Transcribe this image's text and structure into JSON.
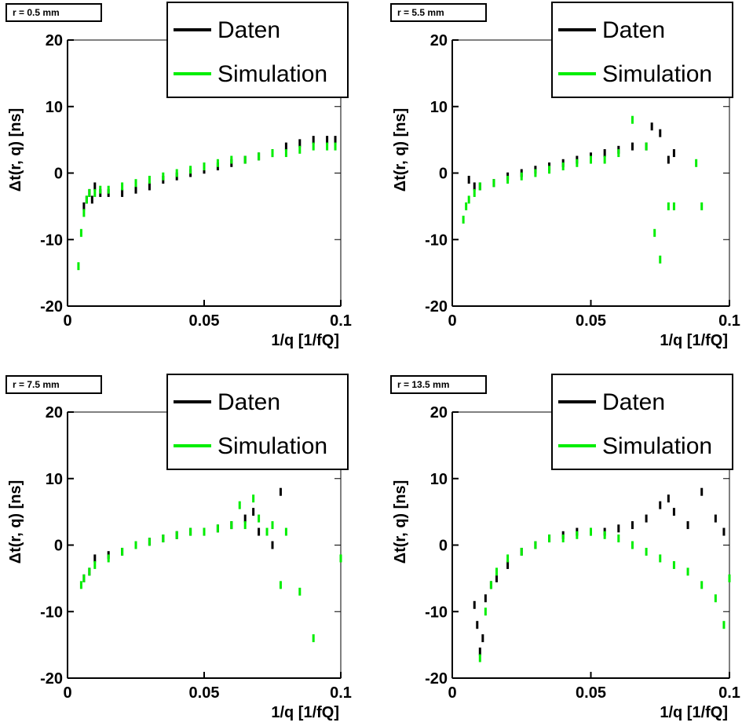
{
  "chart_data": [
    {
      "type": "scatter",
      "panel_label": "r = 0.5 mm",
      "xlabel": "1/q [1/fQ]",
      "ylabel": "Δt(r, q) [ns]",
      "xlim": [
        0,
        0.1
      ],
      "ylim": [
        -20,
        20
      ],
      "xticks": [
        "0",
        "0.05",
        "0.1"
      ],
      "yticks": [
        "-20",
        "-10",
        "0",
        "10",
        "20"
      ],
      "legend": [
        "Daten",
        "Simulation"
      ],
      "legend_position": "top-right",
      "series": [
        {
          "name": "Daten",
          "color": "#000000",
          "x": [
            0.006,
            0.007,
            0.008,
            0.009,
            0.01,
            0.012,
            0.015,
            0.02,
            0.025,
            0.03,
            0.035,
            0.04,
            0.045,
            0.05,
            0.055,
            0.06,
            0.065,
            0.07,
            0.075,
            0.08,
            0.085,
            0.09,
            0.095,
            0.098
          ],
          "y": [
            -5,
            -4,
            -3,
            -4,
            -2,
            -3,
            -3,
            -3,
            -2.5,
            -2,
            -1,
            -0.5,
            0,
            0.5,
            1,
            1.5,
            2,
            2.5,
            3,
            4,
            4.5,
            5,
            5,
            5
          ]
        },
        {
          "name": "Simulation",
          "color": "#00ee00",
          "x": [
            0.004,
            0.005,
            0.006,
            0.007,
            0.008,
            0.01,
            0.012,
            0.015,
            0.02,
            0.025,
            0.03,
            0.035,
            0.04,
            0.045,
            0.05,
            0.055,
            0.06,
            0.065,
            0.07,
            0.075,
            0.08,
            0.085,
            0.09,
            0.095,
            0.098
          ],
          "y": [
            -14,
            -9,
            -6,
            -4,
            -3,
            -3,
            -2.5,
            -2.5,
            -2,
            -1.5,
            -1,
            -0.5,
            0,
            0.5,
            1,
            1.5,
            2,
            2,
            2.5,
            3,
            3,
            3.5,
            4,
            4,
            4
          ]
        }
      ]
    },
    {
      "type": "scatter",
      "panel_label": "r = 5.5 mm",
      "xlabel": "1/q [1/fQ]",
      "ylabel": "Δt(r, q) [ns]",
      "xlim": [
        0,
        0.1
      ],
      "ylim": [
        -20,
        20
      ],
      "xticks": [
        "0",
        "0.05",
        "0.1"
      ],
      "yticks": [
        "-20",
        "-10",
        "0",
        "10",
        "20"
      ],
      "legend": [
        "Daten",
        "Simulation"
      ],
      "legend_position": "top-right",
      "series": [
        {
          "name": "Daten",
          "color": "#000000",
          "x": [
            0.006,
            0.008,
            0.01,
            0.015,
            0.02,
            0.025,
            0.03,
            0.035,
            0.04,
            0.045,
            0.05,
            0.055,
            0.06,
            0.065,
            0.07,
            0.072,
            0.075,
            0.078,
            0.08
          ],
          "y": [
            -1,
            -2,
            -2,
            -1.5,
            -0.5,
            0,
            0.5,
            1,
            1.5,
            2,
            2.5,
            3,
            3.5,
            4,
            4,
            7,
            6,
            2,
            3
          ]
        },
        {
          "name": "Simulation",
          "color": "#00ee00",
          "x": [
            0.004,
            0.005,
            0.006,
            0.008,
            0.01,
            0.015,
            0.02,
            0.025,
            0.03,
            0.035,
            0.04,
            0.045,
            0.05,
            0.055,
            0.06,
            0.065,
            0.07,
            0.073,
            0.075,
            0.078,
            0.08,
            0.088,
            0.09
          ],
          "y": [
            -7,
            -5,
            -4,
            -3,
            -2,
            -1.5,
            -1,
            -0.5,
            0,
            0.5,
            1,
            1.5,
            2,
            2,
            3,
            8,
            4,
            -9,
            -13,
            -5,
            -5,
            1.5,
            -5
          ]
        }
      ]
    },
    {
      "type": "scatter",
      "panel_label": "r = 7.5 mm",
      "xlabel": "1/q [1/fQ]",
      "ylabel": "Δt(r, q) [ns]",
      "xlim": [
        0,
        0.1
      ],
      "ylim": [
        -20,
        20
      ],
      "xticks": [
        "0",
        "0.05",
        "0.1"
      ],
      "yticks": [
        "-20",
        "-10",
        "0",
        "10",
        "20"
      ],
      "legend": [
        "Daten",
        "Simulation"
      ],
      "legend_position": "top-right",
      "series": [
        {
          "name": "Daten",
          "color": "#000000",
          "x": [
            0.006,
            0.008,
            0.01,
            0.015,
            0.02,
            0.025,
            0.03,
            0.035,
            0.04,
            0.045,
            0.05,
            0.055,
            0.06,
            0.065,
            0.068,
            0.07,
            0.075,
            0.078
          ],
          "y": [
            -5,
            -4,
            -2,
            -1.5,
            -1,
            0,
            0.5,
            1,
            1.5,
            2,
            2,
            2.5,
            3,
            4,
            5,
            2,
            0,
            8
          ]
        },
        {
          "name": "Simulation",
          "color": "#00ee00",
          "x": [
            0.005,
            0.006,
            0.008,
            0.01,
            0.015,
            0.02,
            0.025,
            0.03,
            0.035,
            0.04,
            0.045,
            0.05,
            0.055,
            0.06,
            0.063,
            0.065,
            0.068,
            0.07,
            0.073,
            0.075,
            0.078,
            0.08,
            0.085,
            0.09,
            0.1
          ],
          "y": [
            -6,
            -5,
            -4,
            -3,
            -2,
            -1,
            0,
            0.5,
            1,
            1.5,
            2,
            2,
            2.5,
            3,
            6,
            3,
            7,
            4,
            2,
            3,
            -6,
            2,
            -7,
            -14,
            -2
          ]
        }
      ]
    },
    {
      "type": "scatter",
      "panel_label": "r = 13.5 mm",
      "xlabel": "1/q [1/fQ]",
      "ylabel": "Δt(r, q) [ns]",
      "xlim": [
        0,
        0.1
      ],
      "ylim": [
        -20,
        20
      ],
      "xticks": [
        "0",
        "0.05",
        "0.1"
      ],
      "yticks": [
        "-20",
        "-10",
        "0",
        "10",
        "20"
      ],
      "legend": [
        "Daten",
        "Simulation"
      ],
      "legend_position": "top-right",
      "series": [
        {
          "name": "Daten",
          "color": "#000000",
          "x": [
            0.008,
            0.009,
            0.01,
            0.011,
            0.012,
            0.014,
            0.016,
            0.02,
            0.025,
            0.03,
            0.035,
            0.04,
            0.045,
            0.05,
            0.055,
            0.06,
            0.065,
            0.07,
            0.075,
            0.078,
            0.08,
            0.085,
            0.09,
            0.095,
            0.098
          ],
          "y": [
            -9,
            -12,
            -16,
            -14,
            -8,
            -6,
            -5,
            -3,
            -1,
            0,
            1,
            1.5,
            2,
            2,
            2,
            2.5,
            3,
            4,
            6,
            7,
            5,
            3,
            8,
            4,
            2
          ]
        },
        {
          "name": "Simulation",
          "color": "#00ee00",
          "x": [
            0.01,
            0.012,
            0.014,
            0.016,
            0.02,
            0.025,
            0.03,
            0.035,
            0.04,
            0.045,
            0.05,
            0.055,
            0.06,
            0.065,
            0.07,
            0.075,
            0.08,
            0.085,
            0.09,
            0.095,
            0.098,
            0.1
          ],
          "y": [
            -17,
            -10,
            -6,
            -4,
            -2,
            -1,
            0,
            1,
            1,
            1.5,
            2,
            1.5,
            1,
            0,
            -1,
            -2,
            -3,
            -4,
            -6,
            -8,
            -12,
            -5
          ]
        }
      ]
    }
  ]
}
